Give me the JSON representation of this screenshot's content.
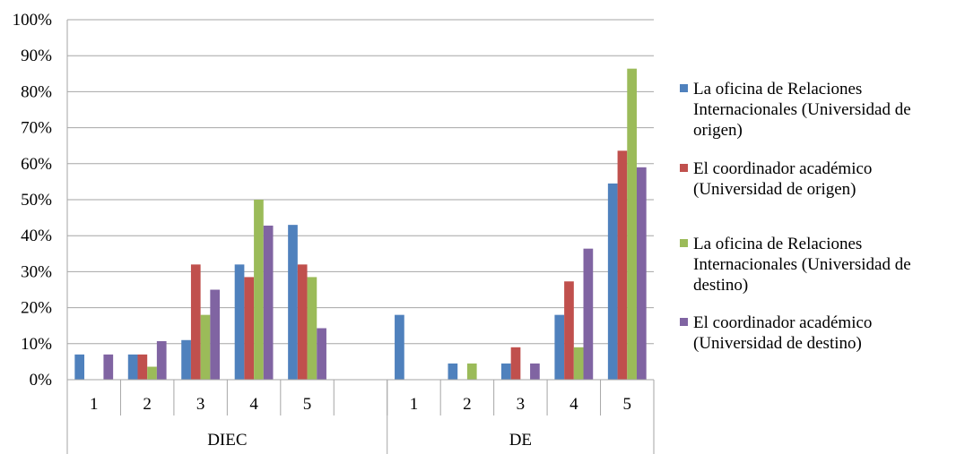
{
  "chart_data": {
    "type": "bar",
    "groups": [
      {
        "label": "DIEC",
        "categories": [
          "1",
          "2",
          "3",
          "4",
          "5"
        ]
      },
      {
        "label": "DE",
        "categories": [
          "1",
          "2",
          "3",
          "4",
          "5"
        ]
      }
    ],
    "series": [
      {
        "name": "La oficina de Relaciones\nInternacionales (Universidad de\norigen)",
        "color": "#4F81BD",
        "values": [
          7,
          7,
          11,
          32,
          43,
          18,
          4.5,
          4.5,
          18,
          54.5
        ]
      },
      {
        "name": "El coordinador académico\n(Universidad de origen)",
        "color": "#C0504D",
        "values": [
          0,
          7,
          32,
          28.5,
          32,
          0,
          0,
          9,
          27.3,
          63.6
        ]
      },
      {
        "name": "La oficina de Relaciones\nInternacionales (Universidad de\ndestino)",
        "color": "#9BBB59",
        "values": [
          0,
          3.6,
          18,
          50,
          28.5,
          0,
          4.5,
          0,
          9,
          86.4
        ]
      },
      {
        "name": "El coordinador académico\n(Universidad de destino)",
        "color": "#8064A2",
        "values": [
          7,
          10.7,
          25,
          42.8,
          14.3,
          0,
          0,
          4.5,
          36.4,
          59
        ]
      }
    ],
    "yticks": [
      "0%",
      "10%",
      "20%",
      "30%",
      "40%",
      "50%",
      "60%",
      "70%",
      "80%",
      "90%",
      "100%"
    ],
    "ylim": [
      0,
      100
    ],
    "grid": true,
    "legend_position": "right"
  }
}
